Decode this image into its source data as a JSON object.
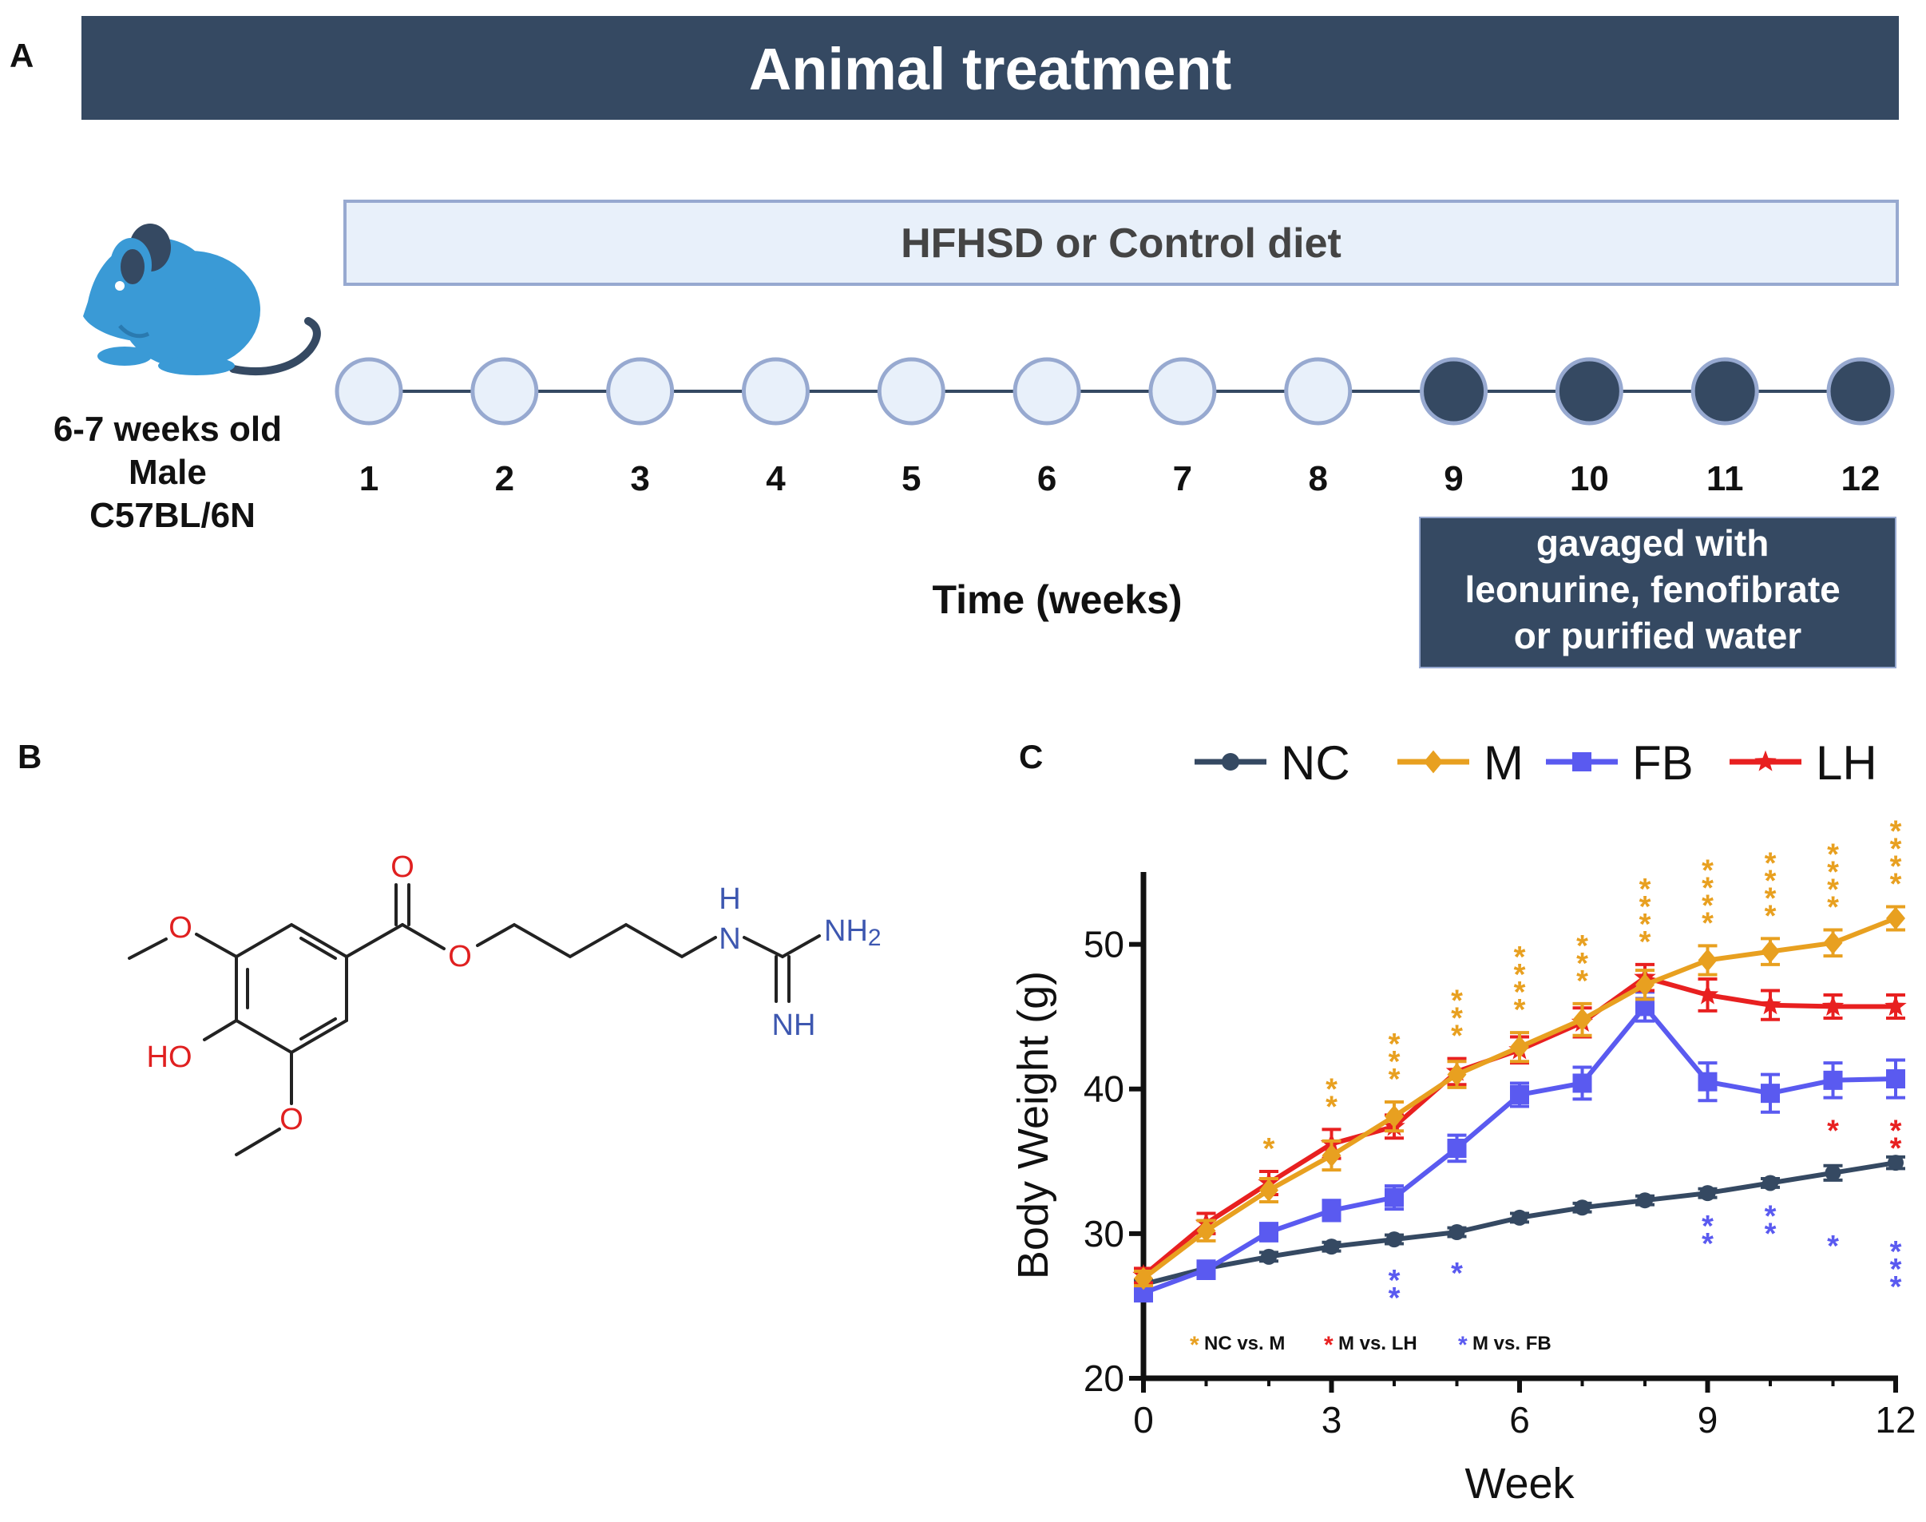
{
  "panel_a": {
    "letter": "A",
    "banner_title": "Animal treatment",
    "diet_label": "HFHSD or Control diet",
    "mouse_label_lines": [
      "6-7 weeks old",
      "Male",
      "C57BL/6N"
    ],
    "weeks": [
      "1",
      "2",
      "3",
      "4",
      "5",
      "6",
      "7",
      "8",
      "9",
      "10",
      "11",
      "12"
    ],
    "treated_from_week": 9,
    "time_label": "Time (weeks)",
    "gavage_lines": [
      "gavaged with",
      "leonurine, fenofibrate",
      "or purified water"
    ],
    "colors": {
      "navy": "#354962",
      "light_fill": "#e8f0fa",
      "light_border": "#97a9d0",
      "mouse": "#3a9ad6"
    }
  },
  "panel_b": {
    "letter": "B",
    "atom_labels": {
      "o_ether_top": "O",
      "o_ether_bottom": "O",
      "hydroxyl": "HO",
      "o_carbonyl": "O",
      "o_ester": "O",
      "nh": "H",
      "n": "N",
      "nh2": "NH",
      "nh2_sub": "2",
      "imine": "NH"
    },
    "colors": {
      "oxygen": "#e02020",
      "nitrogen": "#3d57b0",
      "bond": "#222222"
    }
  },
  "panel_c": {
    "letter": "C",
    "chart_data": {
      "type": "line",
      "xlabel": "Week",
      "ylabel": "Body Weight (g)",
      "xlim": [
        0,
        12
      ],
      "ylim": [
        20,
        55
      ],
      "xticks": [
        "0",
        "3",
        "6",
        "9",
        "12"
      ],
      "yticks": [
        "20",
        "30",
        "40",
        "50"
      ],
      "legend_position": "top",
      "x": [
        0,
        1,
        2,
        3,
        4,
        5,
        6,
        7,
        8,
        9,
        10,
        11,
        12
      ],
      "series": [
        {
          "name": "NC",
          "color": "#354962",
          "marker": "circle",
          "values": [
            26.5,
            27.6,
            28.4,
            29.1,
            29.6,
            30.1,
            31.1,
            31.8,
            32.3,
            32.8,
            33.5,
            34.2,
            34.9
          ],
          "errors": [
            0.3,
            0.3,
            0.3,
            0.3,
            0.3,
            0.3,
            0.3,
            0.3,
            0.3,
            0.3,
            0.3,
            0.5,
            0.4
          ]
        },
        {
          "name": "M",
          "color": "#e8a020",
          "marker": "diamond",
          "values": [
            26.9,
            30.2,
            33.0,
            35.4,
            38.1,
            41.0,
            42.9,
            44.8,
            47.2,
            48.9,
            49.5,
            50.1,
            51.8
          ],
          "errors": [
            0.5,
            0.7,
            0.8,
            1.0,
            1.0,
            0.9,
            1.0,
            1.1,
            1.0,
            1.0,
            0.9,
            0.9,
            0.8
          ]
        },
        {
          "name": "FB",
          "color": "#5a5af0",
          "marker": "square",
          "values": [
            25.9,
            27.5,
            30.1,
            31.6,
            32.5,
            35.9,
            39.6,
            40.4,
            45.7,
            40.5,
            39.7,
            40.6,
            40.7
          ],
          "errors": [
            0.5,
            0.6,
            0.6,
            0.7,
            0.8,
            0.9,
            0.8,
            1.1,
            1.0,
            1.3,
            1.3,
            1.2,
            1.3
          ]
        },
        {
          "name": "LH",
          "color": "#e82020",
          "marker": "star",
          "values": [
            27.1,
            30.7,
            33.5,
            36.2,
            37.4,
            41.2,
            42.7,
            44.6,
            47.7,
            46.5,
            45.8,
            45.7,
            45.7
          ],
          "errors": [
            0.5,
            0.7,
            0.8,
            1.0,
            0.8,
            0.9,
            0.9,
            1.0,
            0.9,
            1.1,
            1.0,
            0.8,
            0.8
          ]
        }
      ],
      "significance": [
        {
          "x": 2,
          "stars": 1,
          "color": "#e8a020",
          "pos": "above"
        },
        {
          "x": 3,
          "stars": 2,
          "color": "#e8a020",
          "pos": "above"
        },
        {
          "x": 4,
          "stars": 3,
          "color": "#e8a020",
          "pos": "above"
        },
        {
          "x": 5,
          "stars": 3,
          "color": "#e8a020",
          "pos": "above"
        },
        {
          "x": 6,
          "stars": 4,
          "color": "#e8a020",
          "pos": "above"
        },
        {
          "x": 7,
          "stars": 3,
          "color": "#e8a020",
          "pos": "above"
        },
        {
          "x": 8,
          "stars": 4,
          "color": "#e8a020",
          "pos": "above"
        },
        {
          "x": 9,
          "stars": 4,
          "color": "#e8a020",
          "pos": "above"
        },
        {
          "x": 10,
          "stars": 4,
          "color": "#e8a020",
          "pos": "above"
        },
        {
          "x": 11,
          "stars": 4,
          "color": "#e8a020",
          "pos": "above"
        },
        {
          "x": 12,
          "stars": 4,
          "color": "#e8a020",
          "pos": "above"
        },
        {
          "x": 4,
          "stars": 2,
          "color": "#5a5af0",
          "pos": "below"
        },
        {
          "x": 5,
          "stars": 1,
          "color": "#5a5af0",
          "pos": "below"
        },
        {
          "x": 9,
          "stars": 2,
          "color": "#5a5af0",
          "pos": "below"
        },
        {
          "x": 10,
          "stars": 2,
          "color": "#5a5af0",
          "pos": "below"
        },
        {
          "x": 11,
          "stars": 1,
          "color": "#5a5af0",
          "pos": "below_low"
        },
        {
          "x": 12,
          "stars": 3,
          "color": "#5a5af0",
          "pos": "below_low"
        },
        {
          "x": 11,
          "stars": 1,
          "color": "#e82020",
          "pos": "below"
        },
        {
          "x": 12,
          "stars": 2,
          "color": "#e82020",
          "pos": "below"
        }
      ],
      "annotation_legend": [
        {
          "label": "NC vs. M",
          "color": "#e8a020"
        },
        {
          "label": "M vs. LH",
          "color": "#e82020"
        },
        {
          "label": "M vs. FB",
          "color": "#5a5af0"
        }
      ]
    }
  }
}
